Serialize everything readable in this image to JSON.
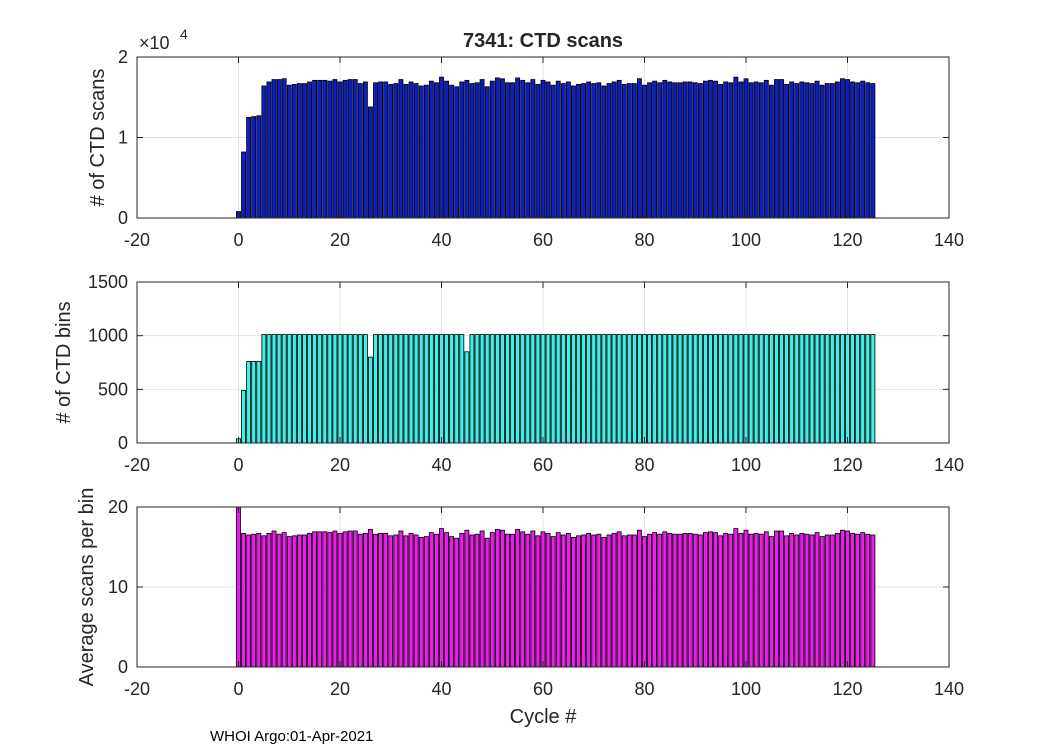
{
  "figure": {
    "title": "7341: CTD scans",
    "footer": "WHOI Argo:01-Apr-2021"
  },
  "chart_data": [
    {
      "type": "bar",
      "name": "scans",
      "ylabel": "# of CTD scans",
      "xlabel": "",
      "xlim": [
        -20,
        140
      ],
      "xticks": [
        -20,
        0,
        20,
        40,
        60,
        80,
        100,
        120,
        140
      ],
      "ylim": [
        0,
        20000
      ],
      "yticks": [
        0,
        10000,
        20000
      ],
      "ytick_labels": [
        "0",
        "1",
        "2"
      ],
      "exponent_label": "×10",
      "exponent_power": "4",
      "grid": true,
      "color": "#0b1ec8",
      "x_start": 0,
      "values": [
        800,
        8200,
        12500,
        12600,
        12700,
        16400,
        16900,
        17200,
        17200,
        17300,
        16500,
        16600,
        16700,
        16700,
        16900,
        17100,
        17100,
        17100,
        17000,
        17200,
        16900,
        17100,
        17200,
        17200,
        16700,
        16900,
        13800,
        16800,
        16900,
        16900,
        16600,
        16700,
        17200,
        16600,
        16900,
        16700,
        16400,
        16500,
        17000,
        16800,
        17500,
        17000,
        16500,
        16300,
        16900,
        17100,
        16700,
        16800,
        17200,
        16300,
        17000,
        17400,
        17300,
        16800,
        16800,
        17400,
        17100,
        16800,
        17200,
        16600,
        17100,
        16900,
        16500,
        17000,
        16700,
        16900,
        16400,
        16600,
        16700,
        16900,
        16700,
        16800,
        16400,
        16700,
        16900,
        17100,
        16600,
        16700,
        16700,
        17300,
        16500,
        16800,
        17000,
        16800,
        17100,
        16900,
        16800,
        16800,
        16900,
        16900,
        16800,
        16700,
        17000,
        17100,
        17000,
        16600,
        16900,
        16800,
        17500,
        16900,
        17300,
        16800,
        16900,
        16800,
        17100,
        16500,
        17200,
        17200,
        16600,
        16900,
        16700,
        16900,
        16800,
        16700,
        17000,
        16500,
        16700,
        16700,
        16900,
        17300,
        17200,
        16900,
        16800,
        17000,
        16800,
        16700
      ]
    },
    {
      "type": "bar",
      "name": "bins",
      "ylabel": "# of CTD bins",
      "xlabel": "",
      "xlim": [
        -20,
        140
      ],
      "xticks": [
        -20,
        0,
        20,
        40,
        60,
        80,
        100,
        120,
        140
      ],
      "ylim": [
        0,
        1500
      ],
      "yticks": [
        0,
        500,
        1000,
        1500
      ],
      "ytick_labels": [
        "0",
        "500",
        "1000",
        "1500"
      ],
      "grid": true,
      "color": "#40f0e8",
      "x_start": 0,
      "values": [
        40,
        490,
        760,
        760,
        760,
        1010,
        1010,
        1010,
        1010,
        1010,
        1010,
        1010,
        1010,
        1010,
        1010,
        1010,
        1010,
        1010,
        1010,
        1010,
        1010,
        1010,
        1010,
        1010,
        1010,
        1010,
        800,
        1010,
        1010,
        1010,
        1010,
        1010,
        1010,
        1010,
        1010,
        1010,
        1010,
        1010,
        1010,
        1010,
        1010,
        1010,
        1010,
        1010,
        1010,
        850,
        1010,
        1010,
        1010,
        1010,
        1010,
        1010,
        1010,
        1010,
        1010,
        1010,
        1010,
        1010,
        1010,
        1010,
        1010,
        1010,
        1010,
        1010,
        1010,
        1010,
        1010,
        1010,
        1010,
        1010,
        1010,
        1010,
        1010,
        1010,
        1010,
        1010,
        1010,
        1010,
        1010,
        1010,
        1010,
        1010,
        1010,
        1010,
        1010,
        1010,
        1010,
        1010,
        1010,
        1010,
        1010,
        1010,
        1010,
        1010,
        1010,
        1010,
        1010,
        1010,
        1010,
        1010,
        1010,
        1010,
        1010,
        1010,
        1010,
        1010,
        1010,
        1010,
        1010,
        1010,
        1010,
        1010,
        1010,
        1010,
        1010,
        1010,
        1010,
        1010,
        1010,
        1010,
        1010,
        1010,
        1010,
        1010,
        1010,
        1010
      ]
    },
    {
      "type": "bar",
      "name": "average",
      "ylabel": "Average scans per bin",
      "xlabel": "Cycle #",
      "xlim": [
        -20,
        140
      ],
      "xticks": [
        -20,
        0,
        20,
        40,
        60,
        80,
        100,
        120,
        140
      ],
      "ylim": [
        0,
        20
      ],
      "yticks": [
        0,
        10,
        20
      ],
      "ytick_labels": [
        "0",
        "10",
        "20"
      ],
      "grid": true,
      "color": "#f01af0",
      "x_start": 0,
      "values": [
        20.0,
        16.7,
        16.5,
        16.6,
        16.7,
        16.4,
        16.7,
        17.0,
        16.6,
        16.8,
        16.3,
        16.4,
        16.5,
        16.5,
        16.7,
        16.9,
        16.9,
        16.9,
        16.8,
        17.0,
        16.7,
        16.9,
        17.0,
        17.0,
        16.6,
        16.7,
        17.2,
        16.6,
        16.7,
        16.7,
        16.4,
        16.5,
        17.0,
        16.4,
        16.7,
        16.5,
        16.2,
        16.3,
        16.8,
        16.6,
        17.3,
        16.8,
        16.3,
        16.1,
        16.7,
        17.1,
        16.5,
        16.6,
        17.0,
        16.1,
        16.8,
        17.2,
        17.1,
        16.6,
        16.6,
        17.2,
        16.9,
        16.6,
        17.0,
        16.4,
        16.9,
        16.7,
        16.3,
        16.8,
        16.5,
        16.7,
        16.2,
        16.4,
        16.5,
        16.7,
        16.5,
        16.6,
        16.2,
        16.5,
        16.7,
        16.9,
        16.4,
        16.5,
        16.5,
        17.1,
        16.3,
        16.6,
        16.8,
        16.6,
        16.9,
        16.7,
        16.6,
        16.6,
        16.7,
        16.7,
        16.6,
        16.5,
        16.8,
        16.9,
        16.8,
        16.4,
        16.7,
        16.6,
        17.3,
        16.7,
        17.1,
        16.6,
        16.7,
        16.6,
        16.9,
        16.3,
        17.0,
        17.0,
        16.4,
        16.7,
        16.5,
        16.7,
        16.6,
        16.5,
        16.8,
        16.3,
        16.5,
        16.5,
        16.7,
        17.1,
        17.0,
        16.7,
        16.6,
        16.8,
        16.6,
        16.5
      ]
    }
  ]
}
